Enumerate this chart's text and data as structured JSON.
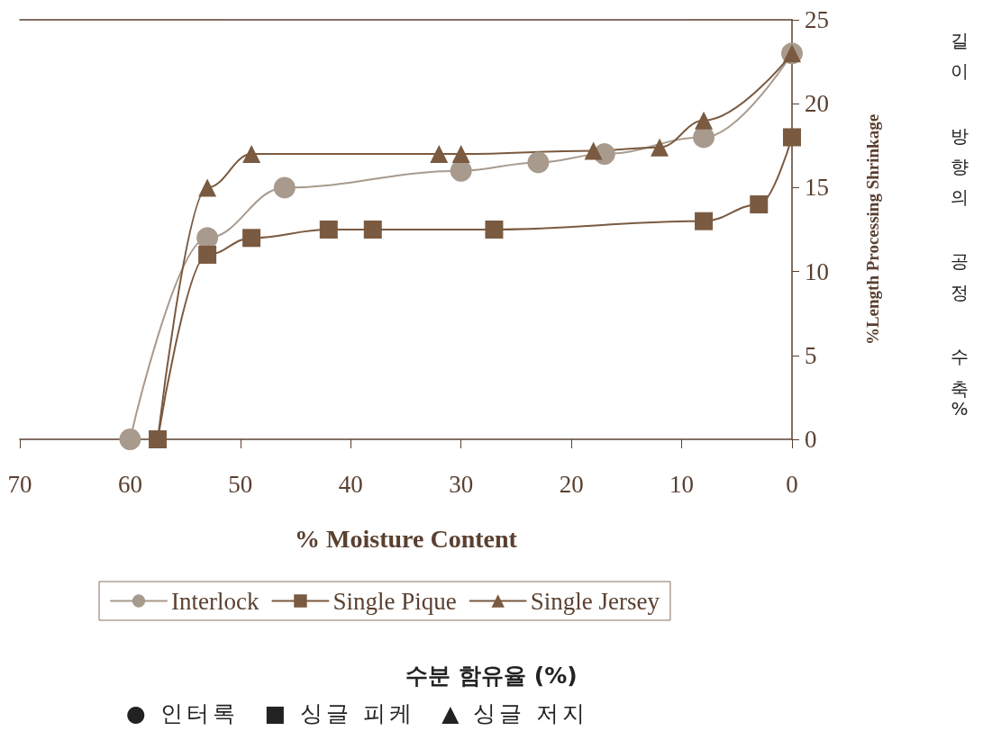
{
  "chart_data": {
    "type": "line",
    "xlabel": "% Moisture Content",
    "ylabel": "%Length Processing Shrinkage",
    "xlim": [
      70,
      0
    ],
    "xticks": [
      70,
      60,
      50,
      40,
      30,
      20,
      10,
      0
    ],
    "ylim": [
      0,
      25
    ],
    "yticks": [
      0,
      5,
      10,
      15,
      20,
      25
    ],
    "grid": false,
    "legend": "bottom",
    "series": [
      {
        "name": "Interlock",
        "color": "#a89a8c",
        "marker": "circle",
        "x": [
          60,
          53,
          46,
          30,
          23,
          17,
          8,
          0
        ],
        "values": [
          0,
          12,
          15,
          16,
          16.5,
          17,
          18,
          23
        ]
      },
      {
        "name": "Single Pique",
        "color": "#7a5a40",
        "marker": "square",
        "x": [
          57.5,
          53,
          49,
          42,
          38,
          27,
          8,
          3,
          0
        ],
        "values": [
          0,
          11,
          12,
          12.5,
          12.5,
          12.5,
          13,
          14,
          18
        ]
      },
      {
        "name": "Single Jersey",
        "color": "#7a5a40",
        "marker": "triangle",
        "x": [
          57.5,
          53,
          49,
          32,
          30,
          18,
          12,
          8,
          0
        ],
        "values": [
          0,
          15,
          17,
          17,
          17,
          17.2,
          17.4,
          19,
          23
        ]
      }
    ],
    "annotations": [
      "길이 방향의 공정 수축%",
      "수분 함유율 (%)",
      "● 인터록　■ 싱글 피케　▲ 싱글 저지"
    ]
  }
}
